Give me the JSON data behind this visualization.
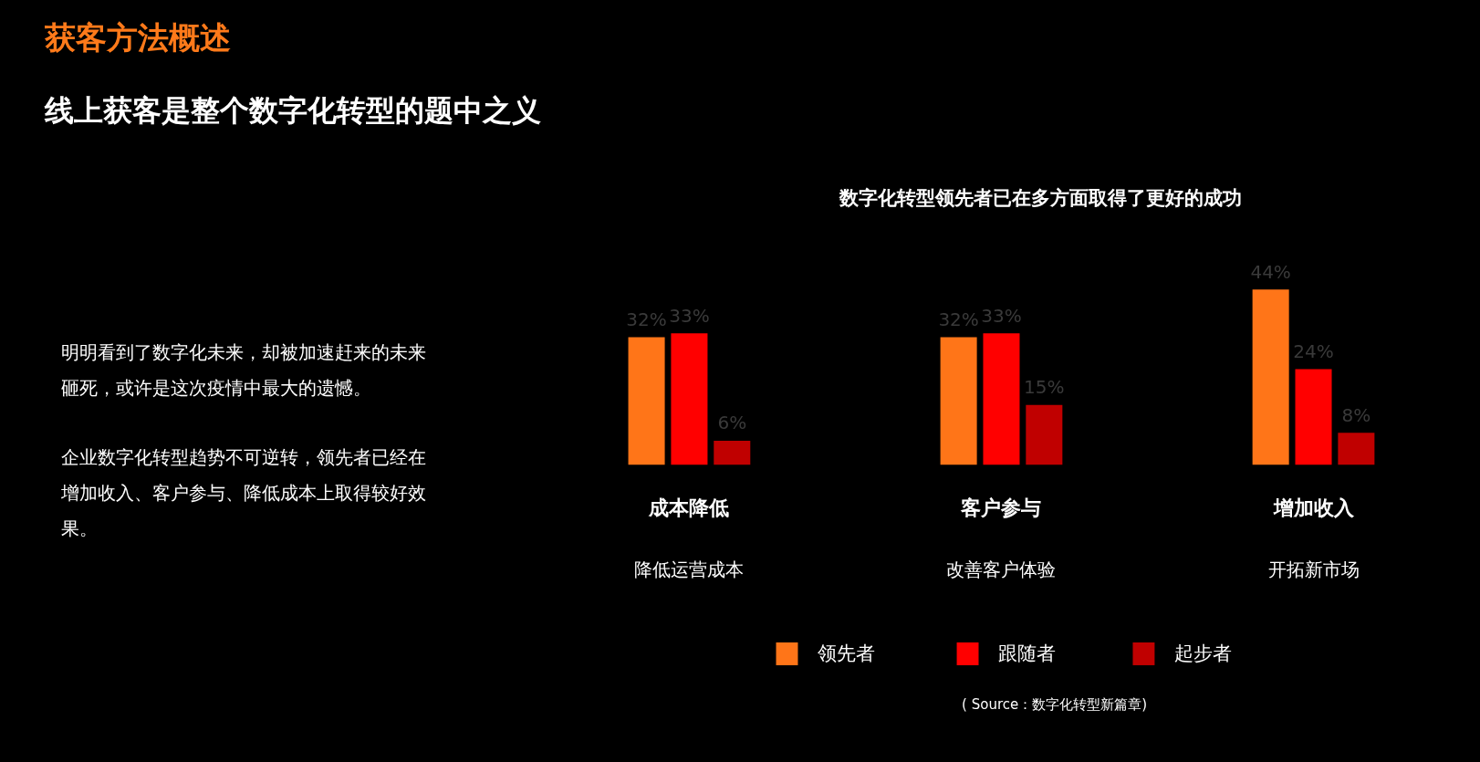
{
  "chart_data": {
    "type": "bar",
    "title": "获客方法概述",
    "subtitle": "线上获客是整个数字化转型的题中之义",
    "categories": [
      "成本降低",
      "客户参与",
      "增加收入"
    ],
    "series": [
      {
        "name": "领先者",
        "color": "#ff7518",
        "values": [
          32,
          32,
          44
        ],
        "value_labels": [
          "32%",
          "32%",
          "44%"
        ]
      },
      {
        "name": "跟随者",
        "color": "#ff0000",
        "values": [
          33,
          33,
          24
        ],
        "value_labels": [
          "33%",
          "33%",
          "24%"
        ]
      },
      {
        "name": "起步者",
        "color": "#c00000",
        "values": [
          6,
          15,
          8
        ],
        "value_labels": [
          "6%",
          "15%",
          "8%"
        ]
      }
    ],
    "legend": "bottom",
    "annotations": [
      "数字化转型领先者已在多方面取得了更好的成功",
      "明明看到了数字化未来，却被加速赶来的未来砸死，或许是这次疫情中最大的遗憾。",
      "企业数字化转型趋势不可逆转，领先者已经在增加收入、客户参与、降低成本上取得较好效果。",
      "降低运营成本",
      "改善客户体验",
      "开拓新市场",
      "( Source：数字化转型新篇章)"
    ]
  }
}
